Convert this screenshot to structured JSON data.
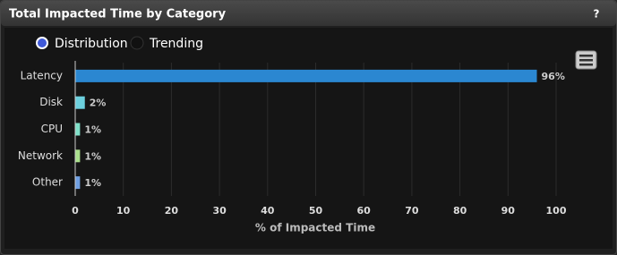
{
  "chart_data": {
    "type": "hbar",
    "title": "Total Impacted Time by Category",
    "help_label": "?",
    "view_options": [
      "Distribution",
      "Trending"
    ],
    "categories": [
      "Latency",
      "Disk",
      "CPU",
      "Network",
      "Other"
    ],
    "values": [
      96,
      2,
      1,
      1,
      1
    ],
    "value_labels": [
      "96%",
      "2%",
      "1%",
      "1%",
      "1%"
    ],
    "colors": [
      "#2b87d1",
      "#6cd0de",
      "#7fe0c9",
      "#a9df8b",
      "#6f9fe2"
    ],
    "xlim": [
      0,
      100
    ],
    "xticks": [
      0,
      10,
      20,
      30,
      40,
      50,
      60,
      70,
      80,
      90,
      100
    ],
    "xlabel": "% of Impacted Time",
    "grid": true
  }
}
